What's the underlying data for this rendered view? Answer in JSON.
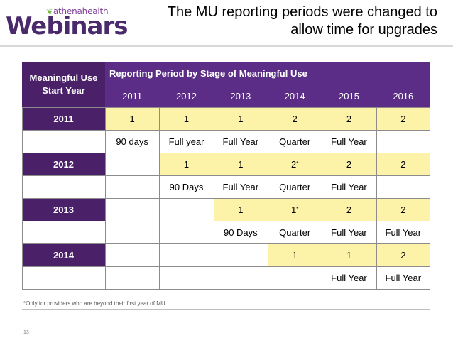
{
  "brand": {
    "company": "athenahealth",
    "product": "Webinars"
  },
  "title_line1": "The MU reporting periods were changed to",
  "title_line2": "allow time for upgrades",
  "table": {
    "corner": "Meaningful Use Start Year",
    "group_header": "Reporting Period by Stage of Meaningful Use",
    "years": [
      "2011",
      "2012",
      "2013",
      "2014",
      "2015",
      "2016"
    ],
    "rows": [
      {
        "start_year": "2011",
        "stages": [
          "1",
          "1",
          "1",
          "2",
          "2",
          "2"
        ],
        "periods": [
          "90 days",
          "Full year",
          "Full Year",
          "Quarter",
          "Full Year",
          ""
        ],
        "stars": [
          false,
          false,
          false,
          false,
          false,
          false
        ]
      },
      {
        "start_year": "2012",
        "stages": [
          "",
          "1",
          "1",
          "2",
          "2",
          "2"
        ],
        "periods": [
          "",
          "90 Days",
          "Full Year",
          "Quarter",
          "Full Year",
          ""
        ],
        "stars": [
          false,
          false,
          false,
          true,
          false,
          false
        ]
      },
      {
        "start_year": "2013",
        "stages": [
          "",
          "",
          "1",
          "1",
          "2",
          "2"
        ],
        "periods": [
          "",
          "",
          "90 Days",
          "Quarter",
          "Full Year",
          "Full Year"
        ],
        "stars": [
          false,
          false,
          false,
          true,
          false,
          false
        ]
      },
      {
        "start_year": "2014",
        "stages": [
          "",
          "",
          "",
          "1",
          "1",
          "2"
        ],
        "periods": [
          "",
          "",
          "",
          "",
          "Full Year",
          "Full Year"
        ],
        "stars": [
          false,
          false,
          false,
          false,
          false,
          false
        ]
      }
    ]
  },
  "star_mark": "*",
  "footnote": "*Only for providers who are beyond their first year of MU",
  "page_number": "13",
  "colors": {
    "purple_dark": "#4a2169",
    "purple": "#5b2d86",
    "yellow": "#fdf3a8",
    "leaf_green": "#7ab648"
  }
}
